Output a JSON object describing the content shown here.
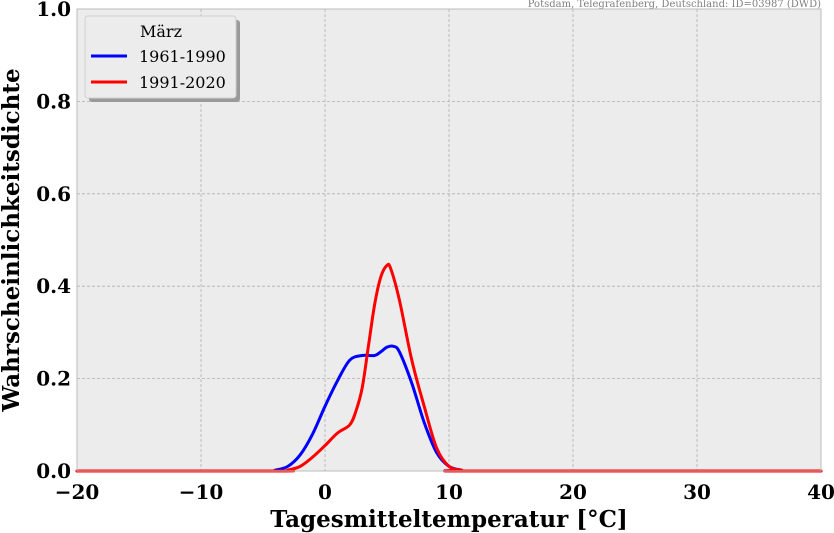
{
  "source_note": "Potsdam, Telegrafenberg, Deutschland: ID=03987 (DWD)",
  "chart_data": {
    "type": "line",
    "title": "",
    "xlabel": "Tagesmitteltemperatur [°C]",
    "ylabel": "Wahrscheinlichkeitsdichte",
    "xlim": [
      -20,
      40
    ],
    "ylim": [
      0,
      1
    ],
    "xticks": [
      -20,
      -10,
      0,
      10,
      20,
      30,
      40
    ],
    "xtick_labels": [
      "−20",
      "−10",
      "0",
      "10",
      "20",
      "30",
      "40"
    ],
    "yticks": [
      0,
      0.2,
      0.4,
      0.6,
      0.8,
      1.0
    ],
    "ytick_labels": [
      "0.0",
      "0.2",
      "0.4",
      "0.6",
      "0.8",
      "1.0"
    ],
    "grid": true,
    "background_color": "#ececec",
    "legend": {
      "title": "März",
      "placement": "top-left"
    },
    "series": [
      {
        "name": "1961-1990",
        "color": "#0000ff",
        "x": [
          -20,
          -5,
          -4,
          -3,
          -2,
          -1,
          0,
          1,
          2,
          3,
          4,
          4.5,
          5,
          5.5,
          6,
          7,
          8,
          9,
          10,
          11,
          12,
          40
        ],
        "y": [
          0,
          0,
          0.002,
          0.01,
          0.035,
          0.08,
          0.14,
          0.195,
          0.24,
          0.25,
          0.25,
          0.258,
          0.268,
          0.27,
          0.258,
          0.19,
          0.105,
          0.04,
          0.01,
          0.002,
          0,
          0
        ]
      },
      {
        "name": "1991-2020",
        "color": "#ff0000",
        "x": [
          -20,
          -4,
          -3,
          -2,
          -1,
          0,
          1,
          2,
          2.5,
          3,
          3.5,
          4,
          4.5,
          5,
          5.3,
          6,
          7,
          8,
          9,
          10,
          11,
          12,
          40
        ],
        "y": [
          0,
          0,
          0.002,
          0.01,
          0.03,
          0.055,
          0.082,
          0.1,
          0.13,
          0.18,
          0.27,
          0.36,
          0.42,
          0.445,
          0.438,
          0.37,
          0.24,
          0.14,
          0.05,
          0.01,
          0.002,
          0,
          0
        ]
      }
    ]
  }
}
